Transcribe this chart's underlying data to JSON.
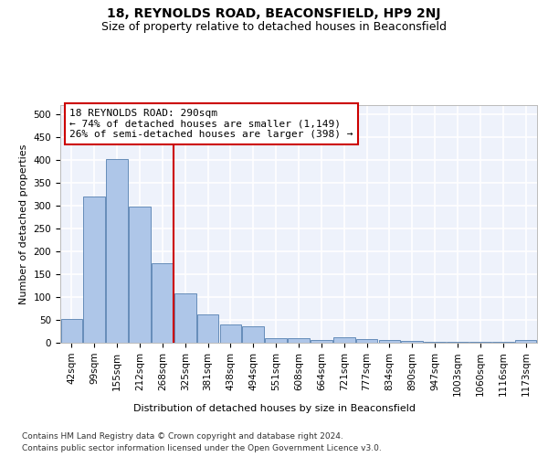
{
  "title1": "18, REYNOLDS ROAD, BEACONSFIELD, HP9 2NJ",
  "title2": "Size of property relative to detached houses in Beaconsfield",
  "xlabel": "Distribution of detached houses by size in Beaconsfield",
  "ylabel": "Number of detached properties",
  "categories": [
    "42sqm",
    "99sqm",
    "155sqm",
    "212sqm",
    "268sqm",
    "325sqm",
    "381sqm",
    "438sqm",
    "494sqm",
    "551sqm",
    "608sqm",
    "664sqm",
    "721sqm",
    "777sqm",
    "834sqm",
    "890sqm",
    "947sqm",
    "1003sqm",
    "1060sqm",
    "1116sqm",
    "1173sqm"
  ],
  "values": [
    53,
    320,
    403,
    298,
    175,
    108,
    63,
    40,
    36,
    10,
    10,
    7,
    13,
    8,
    7,
    5,
    3,
    2,
    2,
    2,
    6
  ],
  "bar_color": "#aec6e8",
  "bar_edge_color": "#5580b0",
  "red_line_x": 4.5,
  "annotation_text": "18 REYNOLDS ROAD: 290sqm\n← 74% of detached houses are smaller (1,149)\n26% of semi-detached houses are larger (398) →",
  "annotation_box_color": "#ffffff",
  "annotation_box_edge": "#cc0000",
  "vline_color": "#cc0000",
  "footnote1": "Contains HM Land Registry data © Crown copyright and database right 2024.",
  "footnote2": "Contains public sector information licensed under the Open Government Licence v3.0.",
  "ylim": [
    0,
    520
  ],
  "yticks": [
    0,
    50,
    100,
    150,
    200,
    250,
    300,
    350,
    400,
    450,
    500
  ],
  "background_color": "#eef2fb",
  "grid_color": "#ffffff",
  "title1_fontsize": 10,
  "title2_fontsize": 9,
  "xlabel_fontsize": 8,
  "ylabel_fontsize": 8,
  "tick_fontsize": 7.5,
  "annotation_fontsize": 8,
  "footnote_fontsize": 6.5
}
